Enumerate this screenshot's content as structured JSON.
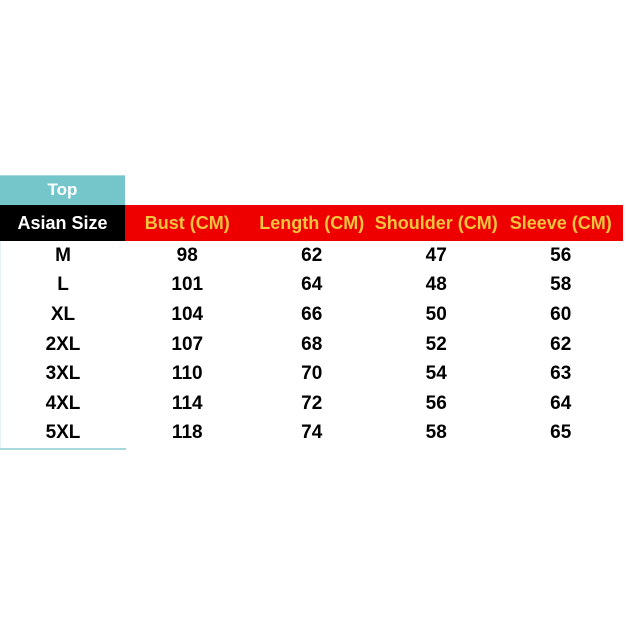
{
  "chart_data": {
    "type": "table",
    "tab_label": "Top",
    "size_header": "Asian Size",
    "columns": [
      "Bust (CM)",
      "Length (CM)",
      "Shoulder (CM)",
      "Sleeve (CM)"
    ],
    "rows": [
      {
        "size": "M",
        "values": [
          "98",
          "62",
          "47",
          "56"
        ]
      },
      {
        "size": "L",
        "values": [
          "101",
          "64",
          "48",
          "58"
        ]
      },
      {
        "size": "XL",
        "values": [
          "104",
          "66",
          "50",
          "60"
        ]
      },
      {
        "size": "2XL",
        "values": [
          "107",
          "68",
          "52",
          "62"
        ]
      },
      {
        "size": "3XL",
        "values": [
          "110",
          "70",
          "54",
          "63"
        ]
      },
      {
        "size": "4XL",
        "values": [
          "114",
          "72",
          "56",
          "64"
        ]
      },
      {
        "size": "5XL",
        "values": [
          "118",
          "74",
          "58",
          "65"
        ]
      }
    ],
    "colors": {
      "tab_teal": "#74c6cb",
      "header_black": "#000000",
      "header_red": "#ee0000",
      "header_gold": "#f2c53d",
      "accent_border": "#a9d7db"
    }
  }
}
